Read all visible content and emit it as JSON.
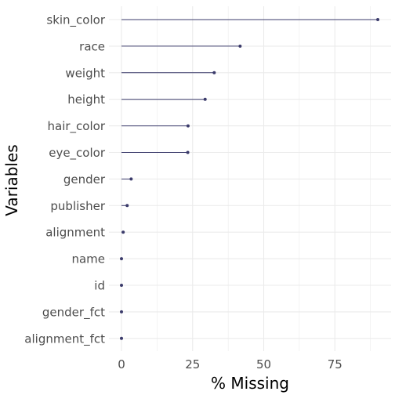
{
  "chart_data": {
    "type": "lollipop",
    "title": "",
    "xlabel": "% Missing",
    "ylabel": "Variables",
    "xlim": [
      0,
      91
    ],
    "x_ticks": [
      0,
      25,
      50,
      75
    ],
    "x_tick_labels": [
      "0",
      "25",
      "50",
      "75"
    ],
    "grid": true,
    "categories": [
      "skin_color",
      "race",
      "weight",
      "height",
      "hair_color",
      "eye_color",
      "gender",
      "publisher",
      "alignment",
      "name",
      "id",
      "gender_fct",
      "alignment_fct"
    ],
    "values": [
      90.1,
      41.7,
      32.6,
      29.4,
      23.4,
      23.3,
      3.4,
      2.0,
      0.6,
      0,
      0,
      0,
      0
    ],
    "colors": {
      "mark": "#3b3b6b",
      "grid": "#ebebeb",
      "text": "#4d4d4d"
    }
  }
}
